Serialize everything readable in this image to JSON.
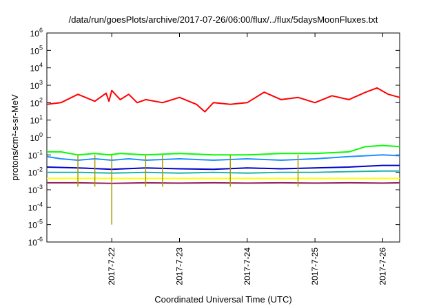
{
  "chart_data": {
    "type": "line",
    "title": "/data/run/goesPlots/archive/2017-07-26/06:00/flux/../flux/5daysMoonFluxes.txt",
    "xlabel": "Coordinated Universal Time (UTC)",
    "ylabel": "protons/cm²-s-sr-MeV",
    "y_scale": "log",
    "ylim": [
      1e-06,
      1000000.0
    ],
    "y_ticks": [
      {
        "base": "10",
        "exp": "-6",
        "value": 1e-06
      },
      {
        "base": "10",
        "exp": "-5",
        "value": 1e-05
      },
      {
        "base": "10",
        "exp": "-4",
        "value": 0.0001
      },
      {
        "base": "10",
        "exp": "-3",
        "value": 0.001
      },
      {
        "base": "10",
        "exp": "-2",
        "value": 0.01
      },
      {
        "base": "10",
        "exp": "-1",
        "value": 0.1
      },
      {
        "base": "10",
        "exp": "0",
        "value": 1
      },
      {
        "base": "10",
        "exp": "1",
        "value": 10
      },
      {
        "base": "10",
        "exp": "2",
        "value": 100
      },
      {
        "base": "10",
        "exp": "3",
        "value": 1000
      },
      {
        "base": "10",
        "exp": "4",
        "value": 10000
      },
      {
        "base": "10",
        "exp": "5",
        "value": 100000
      },
      {
        "base": "10",
        "exp": "6",
        "value": 1000000
      }
    ],
    "xlim": [
      "2017-07-21 01:00",
      "2017-07-26 06:00"
    ],
    "x_ticks": [
      "2017-7-22",
      "2017-7-23",
      "2017-7-24",
      "2017-7-25",
      "2017-7-26"
    ],
    "grid": false,
    "series": [
      {
        "color": "#ff0000",
        "x": [
          "2017-07-21 01:00",
          "2017-07-21 06:00",
          "2017-07-21 12:00",
          "2017-07-21 18:00",
          "2017-07-21 22:00",
          "2017-07-21 23:00",
          "2017-07-22 00:00",
          "2017-07-22 03:00",
          "2017-07-22 06:00",
          "2017-07-22 09:00",
          "2017-07-22 12:00",
          "2017-07-22 18:00",
          "2017-07-23 00:00",
          "2017-07-23 06:00",
          "2017-07-23 09:00",
          "2017-07-23 12:00",
          "2017-07-23 18:00",
          "2017-07-24 00:00",
          "2017-07-24 06:00",
          "2017-07-24 12:00",
          "2017-07-24 18:00",
          "2017-07-25 00:00",
          "2017-07-25 06:00",
          "2017-07-25 12:00",
          "2017-07-25 18:00",
          "2017-07-25 22:00",
          "2017-07-26 02:00",
          "2017-07-26 06:00"
        ],
        "y": [
          80,
          100,
          300,
          120,
          350,
          120,
          500,
          150,
          300,
          100,
          150,
          100,
          200,
          80,
          30,
          100,
          80,
          100,
          400,
          150,
          200,
          100,
          250,
          150,
          400,
          700,
          300,
          200
        ]
      },
      {
        "color": "#00ff00",
        "x": [
          "2017-07-21 01:00",
          "2017-07-21 06:00",
          "2017-07-21 12:00",
          "2017-07-21 18:00",
          "2017-07-21 23:00",
          "2017-07-22 03:00",
          "2017-07-22 12:00",
          "2017-07-23 00:00",
          "2017-07-23 12:00",
          "2017-07-24 00:00",
          "2017-07-24 12:00",
          "2017-07-25 00:00",
          "2017-07-25 12:00",
          "2017-07-25 18:00",
          "2017-07-26 00:00",
          "2017-07-26 06:00"
        ],
        "y": [
          0.15,
          0.15,
          0.1,
          0.12,
          0.1,
          0.12,
          0.1,
          0.12,
          0.1,
          0.1,
          0.12,
          0.12,
          0.15,
          0.3,
          0.35,
          0.3
        ]
      },
      {
        "color": "#1e90ff",
        "x": [
          "2017-07-21 01:00",
          "2017-07-21 06:00",
          "2017-07-21 12:00",
          "2017-07-21 18:00",
          "2017-07-22 00:00",
          "2017-07-22 06:00",
          "2017-07-22 12:00",
          "2017-07-23 00:00",
          "2017-07-23 12:00",
          "2017-07-24 00:00",
          "2017-07-24 12:00",
          "2017-07-25 00:00",
          "2017-07-25 12:00",
          "2017-07-26 00:00",
          "2017-07-26 06:00"
        ],
        "y": [
          0.08,
          0.06,
          0.05,
          0.06,
          0.05,
          0.06,
          0.05,
          0.06,
          0.05,
          0.06,
          0.05,
          0.06,
          0.08,
          0.1,
          0.09
        ]
      },
      {
        "color": "#0000cd",
        "x": [
          "2017-07-21 01:00",
          "2017-07-21 12:00",
          "2017-07-22 00:00",
          "2017-07-22 12:00",
          "2017-07-23 00:00",
          "2017-07-23 12:00",
          "2017-07-24 00:00",
          "2017-07-24 12:00",
          "2017-07-25 00:00",
          "2017-07-25 12:00",
          "2017-07-26 00:00",
          "2017-07-26 06:00"
        ],
        "y": [
          0.02,
          0.018,
          0.015,
          0.018,
          0.016,
          0.015,
          0.018,
          0.016,
          0.018,
          0.02,
          0.025,
          0.025
        ]
      },
      {
        "color": "#20b2aa",
        "x": [
          "2017-07-21 01:00",
          "2017-07-21 12:00",
          "2017-07-22 00:00",
          "2017-07-22 12:00",
          "2017-07-23 00:00",
          "2017-07-23 12:00",
          "2017-07-24 00:00",
          "2017-07-24 12:00",
          "2017-07-25 00:00",
          "2017-07-25 12:00",
          "2017-07-26 00:00",
          "2017-07-26 06:00"
        ],
        "y": [
          0.01,
          0.01,
          0.009,
          0.01,
          0.009,
          0.01,
          0.009,
          0.01,
          0.01,
          0.011,
          0.012,
          0.012
        ]
      },
      {
        "color": "#ffff00",
        "x": [
          "2017-07-21 01:00",
          "2017-07-22 00:00",
          "2017-07-23 00:00",
          "2017-07-24 00:00",
          "2017-07-25 00:00",
          "2017-07-26 00:00",
          "2017-07-26 06:00"
        ],
        "y": [
          0.0045,
          0.0045,
          0.0045,
          0.0045,
          0.0045,
          0.0045,
          0.0045
        ]
      },
      {
        "color": "#8b2252",
        "x": [
          "2017-07-21 01:00",
          "2017-07-21 12:00",
          "2017-07-22 00:00",
          "2017-07-22 12:00",
          "2017-07-23 00:00",
          "2017-07-23 12:00",
          "2017-07-24 00:00",
          "2017-07-24 12:00",
          "2017-07-25 00:00",
          "2017-07-25 12:00",
          "2017-07-26 00:00",
          "2017-07-26 06:00"
        ],
        "y": [
          0.0025,
          0.0025,
          0.0023,
          0.0025,
          0.0024,
          0.0025,
          0.0024,
          0.0025,
          0.0024,
          0.0025,
          0.0024,
          0.0025
        ]
      }
    ],
    "dips": [
      {
        "x": "2017-07-21 12:00",
        "y": 0.0015
      },
      {
        "x": "2017-07-21 18:00",
        "y": 0.0015
      },
      {
        "x": "2017-07-22 00:00",
        "y": 1e-05
      },
      {
        "x": "2017-07-22 12:00",
        "y": 0.0015
      },
      {
        "x": "2017-07-22 18:00",
        "y": 0.0015
      },
      {
        "x": "2017-07-23 18:00",
        "y": 0.0015
      },
      {
        "x": "2017-07-24 18:00",
        "y": 0.0015
      }
    ]
  }
}
